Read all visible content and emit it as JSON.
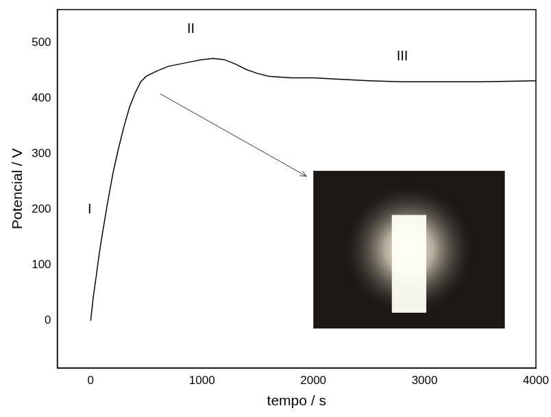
{
  "chart_data": {
    "type": "line",
    "x_label": "tempo / s",
    "y_label": "Potencial / V",
    "x": [
      0,
      25,
      50,
      75,
      100,
      150,
      200,
      250,
      300,
      350,
      400,
      450,
      500,
      600,
      700,
      800,
      900,
      1000,
      1100,
      1200,
      1300,
      1400,
      1500,
      1600,
      1800,
      2000,
      2200,
      2500,
      2800,
      3000,
      3500,
      4000
    ],
    "values": [
      0,
      45,
      80,
      118,
      150,
      210,
      265,
      310,
      350,
      385,
      410,
      430,
      440,
      450,
      458,
      462,
      466,
      470,
      472,
      470,
      462,
      452,
      445,
      440,
      437,
      437,
      435,
      432,
      430,
      430,
      430,
      432
    ],
    "color": "#000000",
    "xlim": [
      -300,
      4000
    ],
    "xticks": [
      0,
      1000,
      2000,
      3000,
      4000
    ],
    "ylim": [
      -85,
      560
    ],
    "yticks": [
      0,
      100,
      200,
      300,
      400,
      500
    ],
    "grid": false,
    "annotations": [
      {
        "text": "I",
        "x": -10,
        "y": 200
      },
      {
        "text": "II",
        "x": 900,
        "y": 525
      },
      {
        "text": "III",
        "x": 2800,
        "y": 475
      }
    ]
  }
}
